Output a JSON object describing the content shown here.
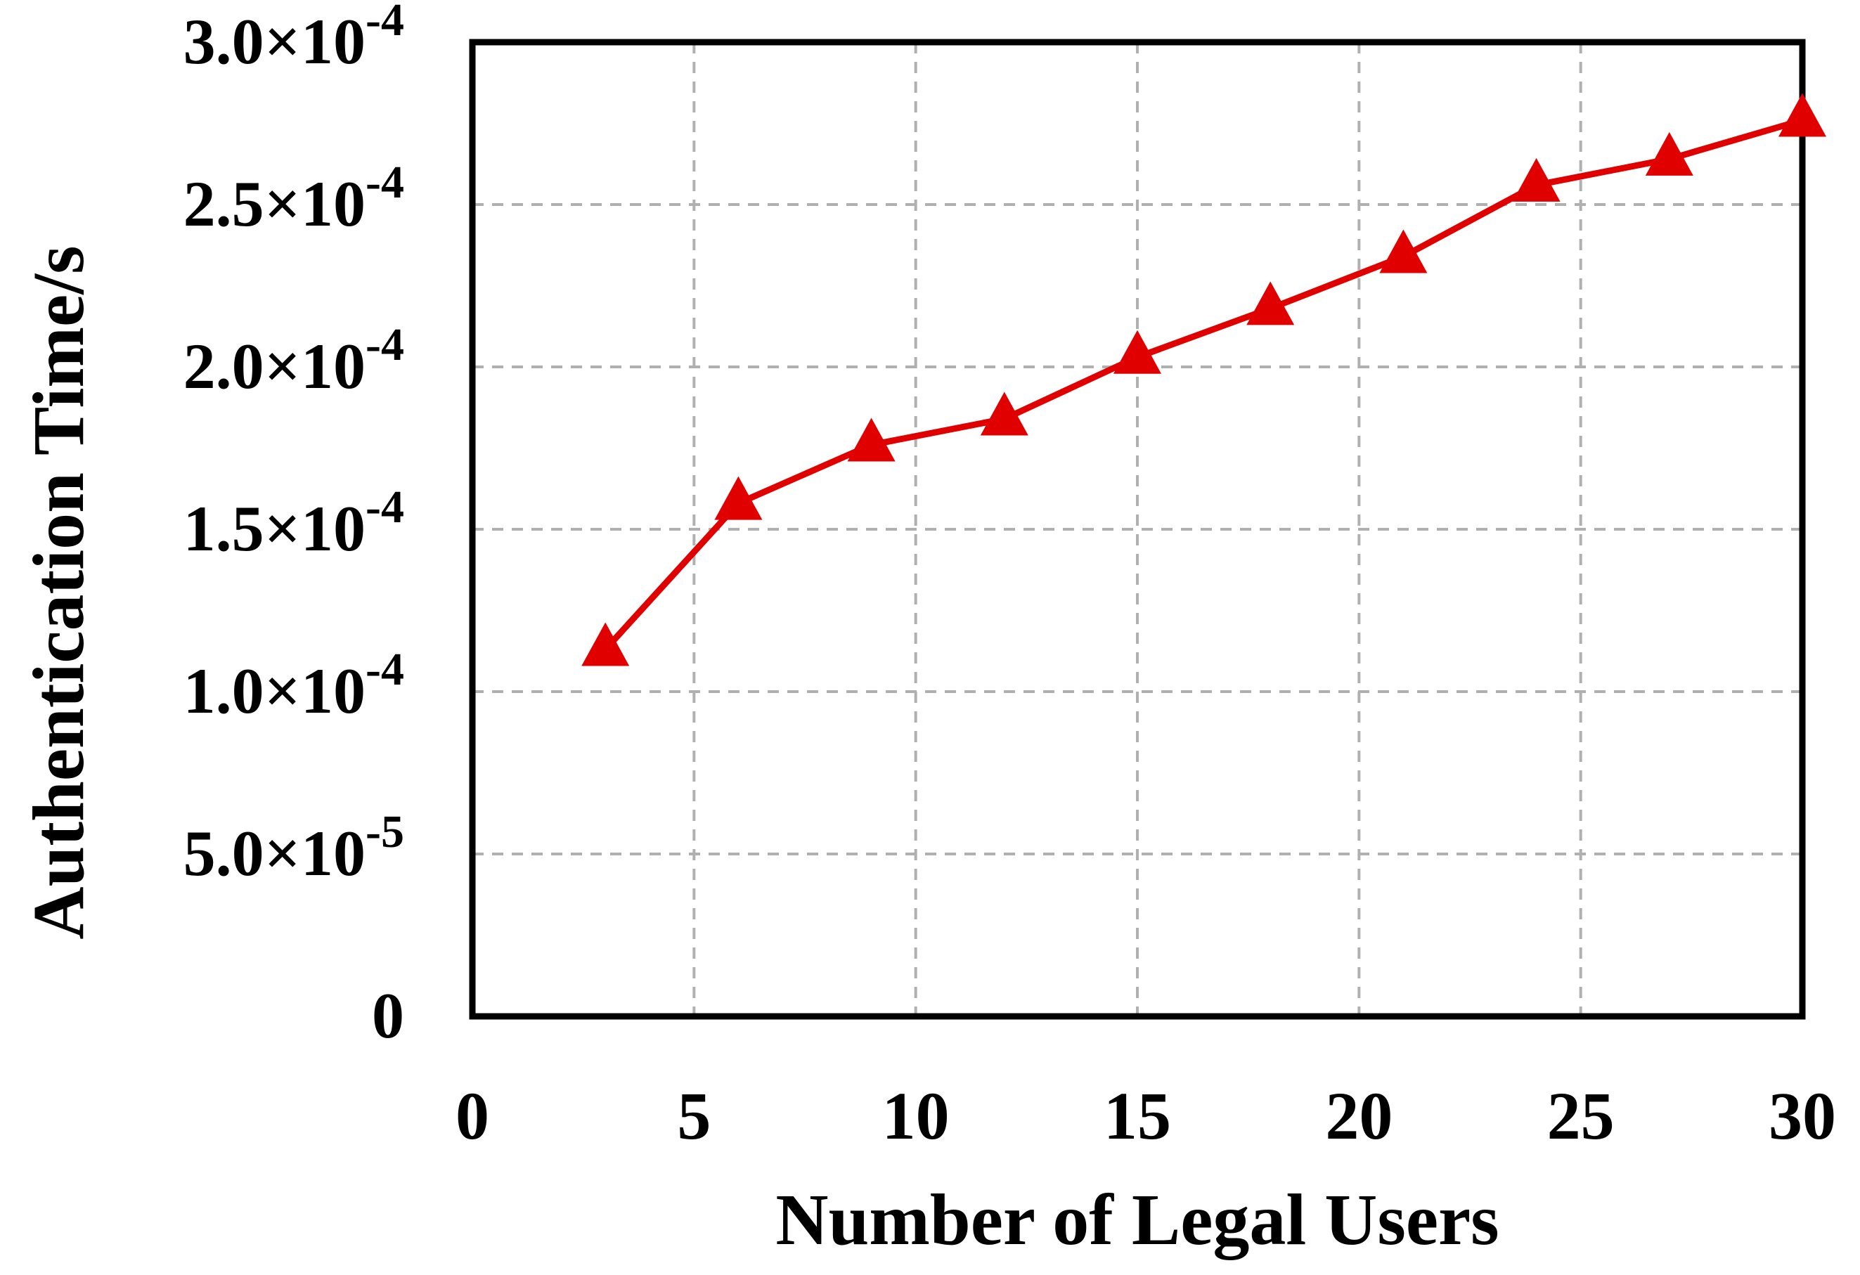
{
  "chart_data": {
    "type": "line",
    "title": "",
    "xlabel": "Number of Legal Users",
    "ylabel": "Authentication Time/s",
    "xlim": [
      0,
      30
    ],
    "ylim": [
      0,
      0.0003
    ],
    "grid": true,
    "x_ticks": [
      {
        "value": 0,
        "label": "0"
      },
      {
        "value": 5,
        "label": "5"
      },
      {
        "value": 10,
        "label": "10"
      },
      {
        "value": 15,
        "label": "15"
      },
      {
        "value": 20,
        "label": "20"
      },
      {
        "value": 25,
        "label": "25"
      },
      {
        "value": 30,
        "label": "30"
      }
    ],
    "y_ticks": [
      {
        "value": 0,
        "mantissa": "0",
        "exponent": ""
      },
      {
        "value": 5e-05,
        "mantissa": "5.0×10",
        "exponent": "-5"
      },
      {
        "value": 0.0001,
        "mantissa": "1.0×10",
        "exponent": "-4"
      },
      {
        "value": 0.00015,
        "mantissa": "1.5×10",
        "exponent": "-4"
      },
      {
        "value": 0.0002,
        "mantissa": "2.0×10",
        "exponent": "-4"
      },
      {
        "value": 0.00025,
        "mantissa": "2.5×10",
        "exponent": "-4"
      },
      {
        "value": 0.0003,
        "mantissa": "3.0×10",
        "exponent": "-4"
      }
    ],
    "series": [
      {
        "color": "#e00000",
        "marker": "triangle",
        "x": [
          3,
          6,
          9,
          12,
          15,
          18,
          21,
          24,
          27,
          30
        ],
        "y": [
          0.000113,
          0.000158,
          0.000176,
          0.000184,
          0.000203,
          0.000218,
          0.000234,
          0.000256,
          0.000264,
          0.000276
        ]
      }
    ]
  }
}
